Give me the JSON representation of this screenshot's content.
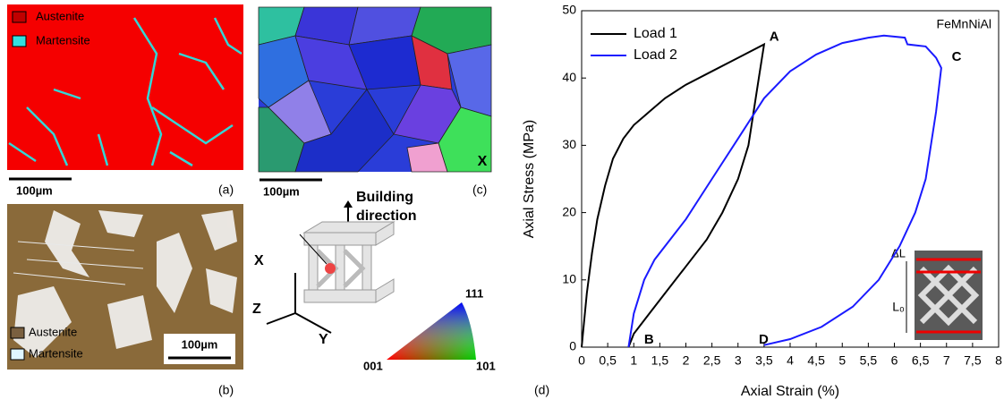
{
  "panel_a": {
    "label": "(a)",
    "legend": [
      "Austenite",
      "Martensite"
    ],
    "scale_bar": "100µm"
  },
  "panel_b": {
    "label": "(b)",
    "legend": [
      "Austenite",
      "Martensite"
    ],
    "scale_bar": "100µm"
  },
  "panel_c": {
    "label": "(c)",
    "scale_bar": "100µm",
    "axis": "X"
  },
  "schematic": {
    "building_direction": [
      "Building",
      "direction"
    ],
    "axes": [
      "X",
      "Y",
      "Z"
    ],
    "ipf_corners": [
      "111",
      "001",
      "101"
    ]
  },
  "panel_d": {
    "label": "(d)"
  },
  "chart_data": {
    "type": "line",
    "xlabel": "Axial Strain (%)",
    "ylabel": "Axial Stress (MPa)",
    "xlim": [
      0,
      8
    ],
    "ylim": [
      0,
      50
    ],
    "xticks": [
      0,
      {
        "value": 0.5,
        "label": "0,5"
      },
      1,
      {
        "value": 1.5,
        "label": "1,5"
      },
      2,
      {
        "value": 2.5,
        "label": "2,5"
      },
      3,
      {
        "value": 3.5,
        "label": "3,5"
      },
      4,
      {
        "value": 4.5,
        "label": "4,5"
      },
      5,
      {
        "value": 5.5,
        "label": "5,5"
      },
      6,
      {
        "value": 6.5,
        "label": "6,5"
      },
      7,
      {
        "value": 7.5,
        "label": "7,5"
      },
      8
    ],
    "yticks": [
      0,
      10,
      20,
      30,
      40,
      50
    ],
    "legend": "upper left",
    "annotation": "FeMnNiAl",
    "points": [
      {
        "text": "A",
        "x": 3.6,
        "y": 45
      },
      {
        "text": "B",
        "x": 1.2,
        "y": 0
      },
      {
        "text": "C",
        "x": 7.1,
        "y": 42
      },
      {
        "text": "D",
        "x": 3.4,
        "y": 0
      }
    ],
    "inset_labels": [
      "ΔL",
      "L₀"
    ],
    "series": [
      {
        "name": "Load 1",
        "color": "#000000",
        "x": [
          0,
          0.1,
          0.2,
          0.3,
          0.45,
          0.6,
          0.8,
          1.0,
          1.3,
          1.6,
          2.0,
          2.5,
          3.0,
          3.5,
          3.4,
          3.3,
          3.2,
          3.0,
          2.7,
          2.4,
          2.0,
          1.6,
          1.3,
          1.0,
          0.9
        ],
        "values": [
          0,
          8,
          14,
          19,
          24,
          28,
          31,
          33,
          35,
          37,
          39,
          41,
          43,
          45,
          40,
          35,
          30,
          25,
          20,
          16,
          12,
          8,
          5,
          2,
          0
        ]
      },
      {
        "name": "Load 2",
        "color": "#1a1aff",
        "x": [
          0.9,
          1.0,
          1.2,
          1.4,
          2.0,
          2.5,
          3.0,
          3.5,
          4.0,
          4.5,
          5.0,
          5.5,
          5.8,
          6.2,
          6.25,
          6.6,
          6.8,
          6.9,
          6.8,
          6.7,
          6.6,
          6.4,
          6.1,
          5.7,
          5.2,
          4.6,
          4.0,
          3.5
        ],
        "values": [
          0,
          5,
          10,
          13,
          19,
          25,
          31,
          37,
          41,
          43.5,
          45.2,
          46,
          46.3,
          46,
          45,
          44.7,
          43,
          41.5,
          35,
          30,
          25,
          20,
          15,
          10,
          6,
          3,
          1.2,
          0.3
        ]
      }
    ]
  }
}
